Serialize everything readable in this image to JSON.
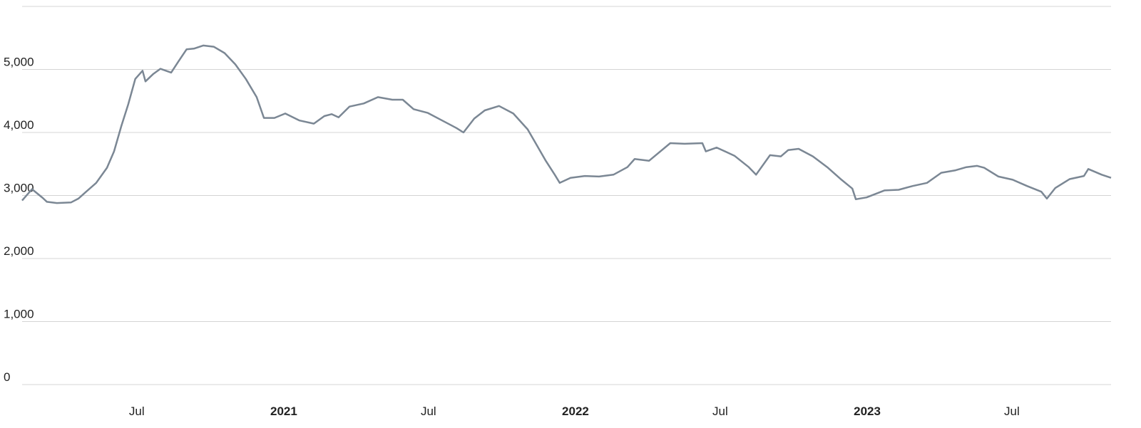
{
  "chart_data": {
    "type": "line",
    "color": "#7b8794",
    "grid": true,
    "xlim": [
      2020.103,
      2023.836
    ],
    "xticks": [
      {
        "value": 2020.496,
        "label": "Jul"
      },
      2021,
      {
        "value": 2021.496,
        "label": "Jul"
      },
      2022,
      {
        "value": 2022.496,
        "label": "Jul"
      },
      2023,
      {
        "value": 2023.496,
        "label": "Jul"
      }
    ],
    "ylim": [
      0,
      6000
    ],
    "yticks": [
      0,
      {
        "value": 1000,
        "label": "1,000"
      },
      {
        "value": 2000,
        "label": "2,000"
      },
      {
        "value": 3000,
        "label": "3,000"
      },
      {
        "value": 4000,
        "label": "4,000"
      },
      {
        "value": 5000,
        "label": "5,000"
      }
    ],
    "x": [
      2020.103,
      2020.137,
      2020.174,
      2020.188,
      2020.222,
      2020.271,
      2020.296,
      2020.32,
      2020.357,
      2020.394,
      2020.418,
      2020.443,
      2020.467,
      2020.491,
      2020.516,
      2020.526,
      2020.553,
      2020.577,
      2020.614,
      2020.638,
      2020.667,
      2020.692,
      2020.724,
      2020.76,
      2020.797,
      2020.834,
      2020.87,
      2020.907,
      2020.932,
      2020.968,
      2021.005,
      2021.054,
      2021.103,
      2021.139,
      2021.164,
      2021.188,
      2021.225,
      2021.274,
      2021.323,
      2021.372,
      2021.408,
      2021.445,
      2021.494,
      2021.543,
      2021.592,
      2021.616,
      2021.653,
      2021.689,
      2021.738,
      2021.787,
      2021.836,
      2021.861,
      2021.897,
      2021.929,
      2021.946,
      2021.983,
      2022.032,
      2022.081,
      2022.13,
      2022.178,
      2022.203,
      2022.252,
      2022.325,
      2022.374,
      2022.435,
      2022.447,
      2022.484,
      2022.545,
      2022.594,
      2022.619,
      2022.667,
      2022.704,
      2022.729,
      2022.765,
      2022.814,
      2022.863,
      2022.912,
      2022.949,
      2022.961,
      2022.998,
      2023.059,
      2023.108,
      2023.156,
      2023.205,
      2023.254,
      2023.303,
      2023.34,
      2023.377,
      2023.401,
      2023.45,
      2023.499,
      2023.548,
      2023.597,
      2023.616,
      2023.645,
      2023.694,
      2023.743,
      2023.758,
      2023.804,
      2023.836
    ],
    "values": [
      2920,
      3100,
      2960,
      2900,
      2880,
      2890,
      2950,
      3050,
      3200,
      3440,
      3700,
      4100,
      4450,
      4850,
      4980,
      4810,
      4930,
      5010,
      4950,
      5120,
      5320,
      5330,
      5380,
      5360,
      5260,
      5080,
      4850,
      4560,
      4230,
      4230,
      4300,
      4190,
      4140,
      4260,
      4290,
      4240,
      4410,
      4460,
      4560,
      4520,
      4520,
      4370,
      4310,
      4190,
      4070,
      4000,
      4220,
      4350,
      4420,
      4300,
      4050,
      3850,
      3560,
      3330,
      3200,
      3280,
      3310,
      3300,
      3330,
      3450,
      3580,
      3550,
      3830,
      3820,
      3830,
      3700,
      3760,
      3630,
      3450,
      3330,
      3640,
      3620,
      3720,
      3740,
      3620,
      3450,
      3250,
      3110,
      2940,
      2970,
      3080,
      3090,
      3150,
      3200,
      3360,
      3400,
      3450,
      3470,
      3440,
      3300,
      3250,
      3150,
      3060,
      2950,
      3120,
      3260,
      3310,
      3420,
      3330,
      3280
    ]
  }
}
